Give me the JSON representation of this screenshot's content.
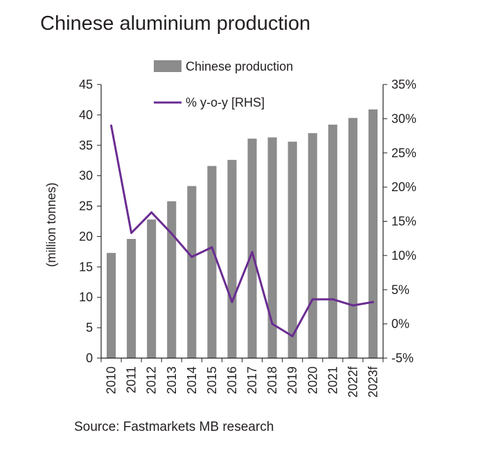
{
  "title": "Chinese aluminium production",
  "source": "Source: Fastmarkets MB research",
  "chart_data": {
    "type": "bar",
    "categories": [
      "2010",
      "2011",
      "2012",
      "2013",
      "2014",
      "2015",
      "2016",
      "2017",
      "2018",
      "2019",
      "2020",
      "2021",
      "2022f",
      "2023f"
    ],
    "series": [
      {
        "name": "Chinese production",
        "type": "bar",
        "axis": "left",
        "color": "#8c8c8c",
        "values": [
          17.3,
          19.6,
          22.8,
          25.8,
          28.3,
          31.6,
          32.6,
          36.1,
          36.3,
          35.6,
          37.0,
          38.4,
          39.5,
          40.9
        ]
      },
      {
        "name": "% y-o-y [RHS]",
        "type": "line",
        "axis": "right",
        "color": "#6a2c91",
        "values": [
          29.0,
          13.3,
          16.3,
          13.2,
          9.8,
          11.2,
          3.2,
          10.5,
          0.0,
          -1.8,
          3.6,
          3.6,
          2.7,
          3.2
        ]
      }
    ],
    "ylabel": "(million tonnes)",
    "ylim": [
      0,
      45
    ],
    "yticks": [
      "0",
      "5",
      "10",
      "15",
      "20",
      "25",
      "30",
      "35",
      "40",
      "45"
    ],
    "y2lim": [
      -5,
      35
    ],
    "y2ticks": [
      "-5%",
      "0%",
      "5%",
      "10%",
      "15%",
      "20%",
      "25%",
      "30%",
      "35%"
    ],
    "legend_position": "top"
  }
}
